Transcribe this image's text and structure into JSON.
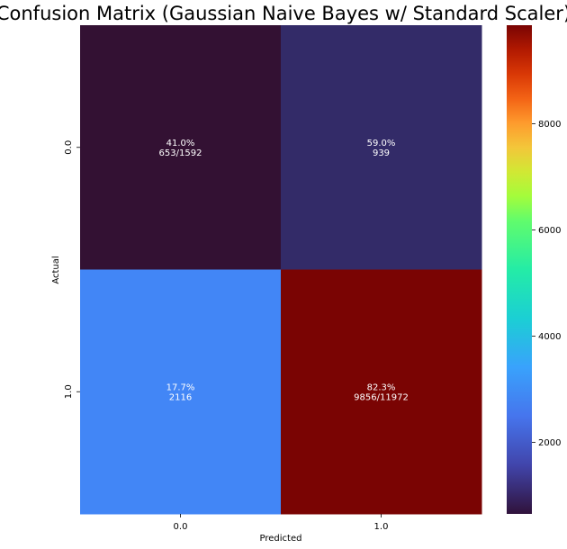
{
  "chart_data": {
    "type": "heatmap",
    "title": "Confusion Matrix (Gaussian Naive Bayes w/ Standard Scaler)",
    "xlabel": "Predicted",
    "ylabel": "Actual",
    "x_categories": [
      "0.0",
      "1.0"
    ],
    "y_categories": [
      "0.0",
      "1.0"
    ],
    "values": [
      [
        653,
        939
      ],
      [
        2116,
        9856
      ]
    ],
    "cell_labels": [
      [
        [
          "41.0%",
          "653/1592"
        ],
        [
          "59.0%",
          "939"
        ]
      ],
      [
        [
          "17.7%",
          "2116"
        ],
        [
          "82.3%",
          "9856/11972"
        ]
      ]
    ],
    "colormap": "turbo",
    "colorbar_range": [
      653,
      9856
    ],
    "colorbar_ticks": [
      2000,
      4000,
      6000,
      8000
    ],
    "colorbar_tick_labels": [
      "2000",
      "4000",
      "6000",
      "8000"
    ],
    "cell_colors": [
      [
        "#331133",
        "#332b68"
      ],
      [
        "#4286f6",
        "#7a0403"
      ]
    ]
  }
}
